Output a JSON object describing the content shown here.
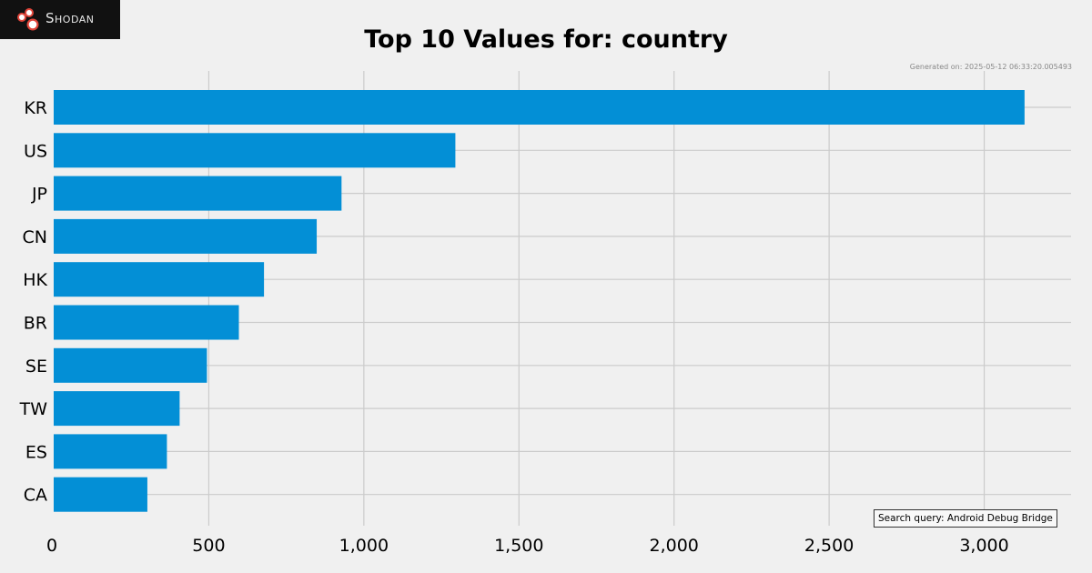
{
  "branding": {
    "logo_text": "Shodan",
    "logo_icon": "shodan-logo-icon",
    "logo_bg": "#111111",
    "logo_accent": "#e0453a"
  },
  "generated_text": "Generated on: 2025-05-12 06:33:20.005493",
  "query_text": "Search query: Android Debug Bridge",
  "colors": {
    "bar": "#038fd6",
    "grid": "#cbcbcb",
    "background": "#f0f0f0"
  },
  "chart_data": {
    "type": "bar",
    "orientation": "horizontal",
    "title": "Top 10 Values for: country",
    "xlabel": "",
    "ylabel": "",
    "categories": [
      "KR",
      "US",
      "JP",
      "CN",
      "HK",
      "BR",
      "SE",
      "TW",
      "ES",
      "CA"
    ],
    "values": [
      3130,
      1295,
      928,
      848,
      678,
      597,
      494,
      406,
      365,
      302
    ],
    "xlim": [
      0,
      3280
    ],
    "xticks": [
      0,
      500,
      1000,
      1500,
      2000,
      2500,
      3000
    ],
    "xtick_labels": [
      "0",
      "500",
      "1,000",
      "1,500",
      "2,000",
      "2,500",
      "3,000"
    ],
    "grid": true
  }
}
